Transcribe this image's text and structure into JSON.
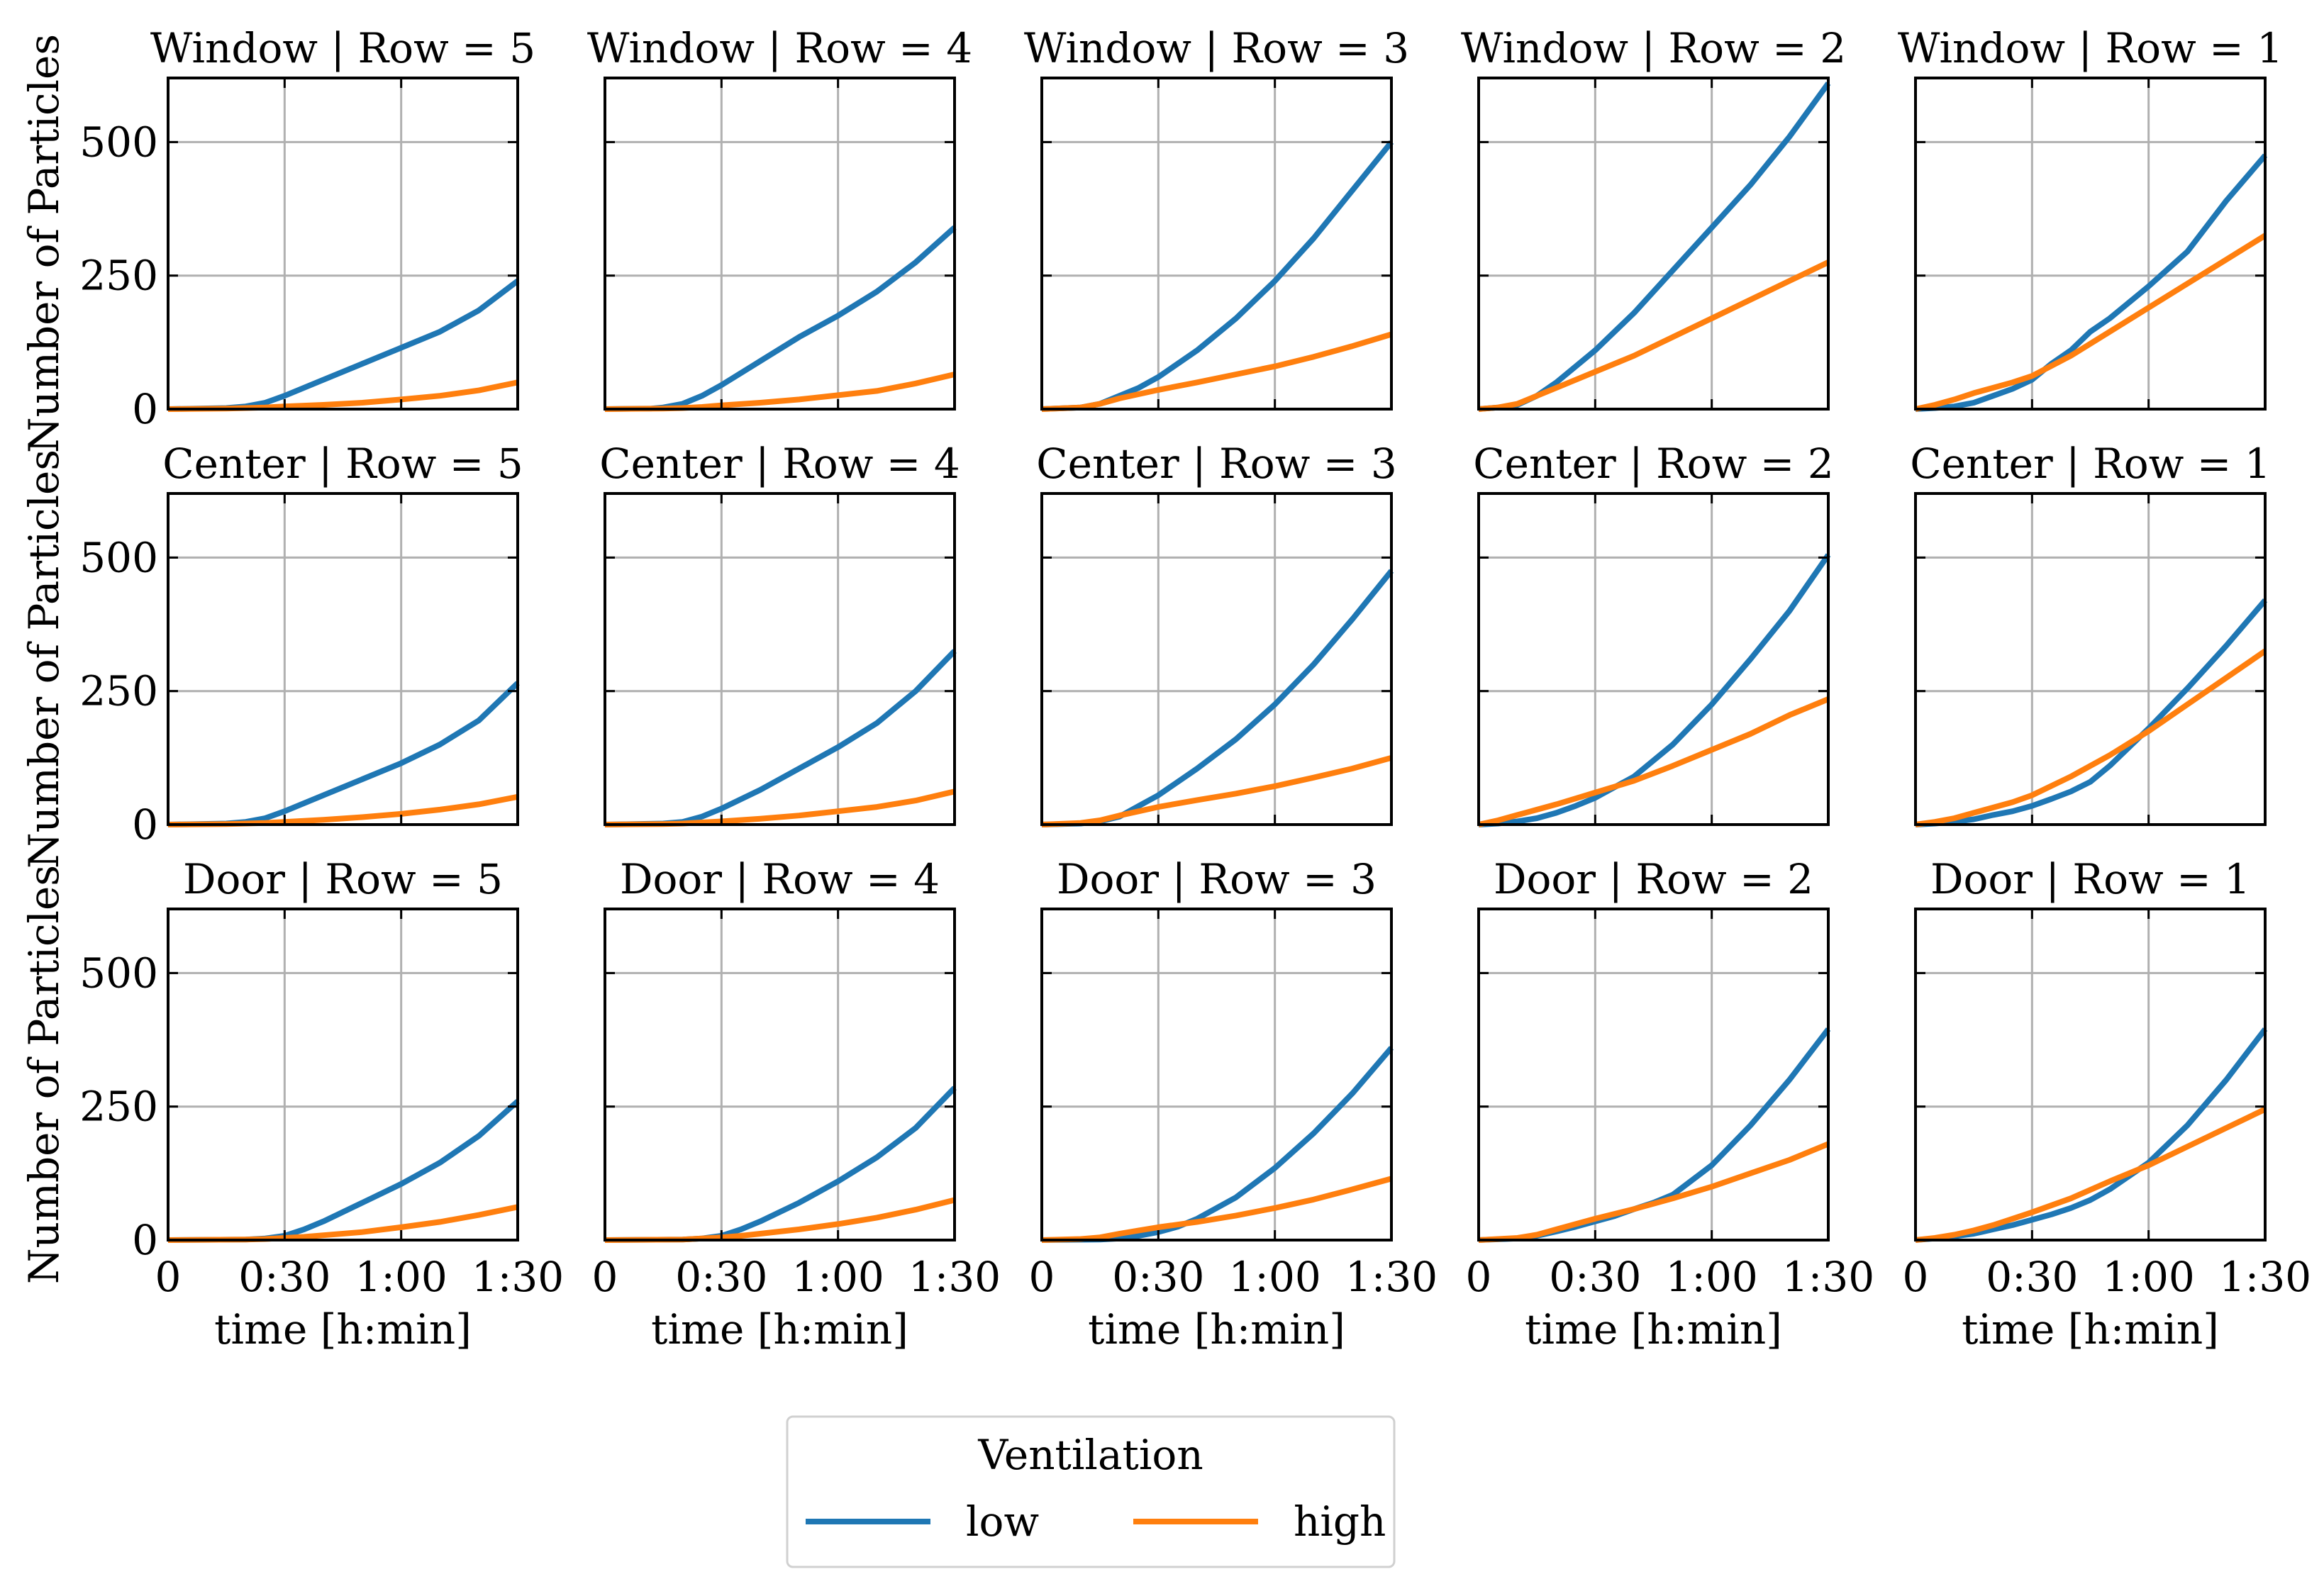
{
  "chart_data": {
    "type": "line",
    "legend": {
      "title": "Ventilation",
      "position": "bottom-center"
    },
    "series_styles": [
      {
        "name": "low",
        "color": "#1f77b4"
      },
      {
        "name": "high",
        "color": "#ff7f0e"
      }
    ],
    "x_axis": {
      "label": "time [h:min]",
      "range": [
        0,
        90
      ],
      "ticks": [
        0,
        30,
        60,
        90
      ],
      "tick_labels": [
        "0",
        "0:30",
        "1:00",
        "1:30"
      ],
      "unit": "minutes"
    },
    "y_axis": {
      "label": "Number of Particles",
      "range": [
        0,
        620
      ],
      "ticks": [
        0,
        250,
        500
      ],
      "tick_labels": [
        "0",
        "250",
        "500"
      ]
    },
    "grid": true,
    "panels": [
      {
        "title": "Window | Row = 5",
        "series": [
          {
            "name": "low",
            "x": [
              0,
              15,
              20,
              25,
              30,
              40,
              50,
              60,
              70,
              80,
              90
            ],
            "values": [
              0,
              2,
              5,
              12,
              25,
              55,
              85,
              115,
              145,
              185,
              240
            ]
          },
          {
            "name": "high",
            "x": [
              0,
              15,
              20,
              25,
              30,
              40,
              50,
              60,
              70,
              80,
              90
            ],
            "values": [
              0,
              1,
              2,
              3,
              5,
              8,
              12,
              18,
              25,
              35,
              50
            ]
          }
        ]
      },
      {
        "title": "Window | Row = 4",
        "series": [
          {
            "name": "low",
            "x": [
              0,
              12,
              15,
              20,
              25,
              30,
              40,
              50,
              55,
              60,
              70,
              80,
              90
            ],
            "values": [
              0,
              1,
              3,
              10,
              25,
              45,
              90,
              135,
              155,
              175,
              220,
              275,
              340
            ]
          },
          {
            "name": "high",
            "x": [
              0,
              15,
              20,
              25,
              30,
              40,
              50,
              60,
              70,
              80,
              90
            ],
            "values": [
              0,
              1,
              2,
              4,
              7,
              12,
              18,
              26,
              34,
              48,
              65
            ]
          }
        ]
      },
      {
        "title": "Window | Row = 3",
        "series": [
          {
            "name": "low",
            "x": [
              0,
              10,
              15,
              20,
              25,
              30,
              40,
              50,
              60,
              70,
              80,
              90
            ],
            "values": [
              0,
              3,
              10,
              25,
              40,
              60,
              110,
              170,
              240,
              320,
              410,
              500
            ]
          },
          {
            "name": "high",
            "x": [
              0,
              10,
              15,
              20,
              25,
              30,
              40,
              50,
              60,
              70,
              80,
              90
            ],
            "values": [
              0,
              3,
              10,
              20,
              28,
              36,
              50,
              65,
              80,
              98,
              118,
              140
            ]
          }
        ]
      },
      {
        "title": "Window | Row = 2",
        "series": [
          {
            "name": "low",
            "x": [
              0,
              5,
              10,
              15,
              20,
              30,
              40,
              50,
              60,
              70,
              80,
              90
            ],
            "values": [
              0,
              3,
              8,
              25,
              50,
              110,
              180,
              260,
              340,
              420,
              510,
              610
            ]
          },
          {
            "name": "high",
            "x": [
              0,
              5,
              10,
              15,
              20,
              30,
              40,
              50,
              60,
              70,
              80,
              90
            ],
            "values": [
              0,
              3,
              10,
              25,
              40,
              70,
              100,
              135,
              170,
              205,
              240,
              275
            ]
          }
        ]
      },
      {
        "title": "Window | Row = 1",
        "series": [
          {
            "name": "low",
            "x": [
              0,
              5,
              10,
              15,
              20,
              25,
              30,
              35,
              40,
              45,
              50,
              60,
              70,
              80,
              90
            ],
            "values": [
              0,
              2,
              5,
              12,
              25,
              38,
              55,
              85,
              110,
              145,
              170,
              230,
              295,
              390,
              475
            ]
          },
          {
            "name": "high",
            "x": [
              0,
              5,
              10,
              15,
              20,
              25,
              30,
              40,
              50,
              60,
              70,
              80,
              90
            ],
            "values": [
              0,
              8,
              18,
              30,
              40,
              50,
              62,
              100,
              145,
              190,
              235,
              280,
              325
            ]
          }
        ]
      },
      {
        "title": "Center | Row = 5",
        "series": [
          {
            "name": "low",
            "x": [
              0,
              15,
              20,
              25,
              30,
              40,
              50,
              60,
              70,
              80,
              90
            ],
            "values": [
              0,
              2,
              5,
              12,
              25,
              55,
              85,
              115,
              150,
              195,
              265
            ]
          },
          {
            "name": "high",
            "x": [
              0,
              15,
              20,
              25,
              30,
              40,
              50,
              60,
              70,
              80,
              90
            ],
            "values": [
              0,
              1,
              2,
              3,
              5,
              9,
              14,
              20,
              28,
              38,
              52
            ]
          }
        ]
      },
      {
        "title": "Center | Row = 4",
        "series": [
          {
            "name": "low",
            "x": [
              0,
              15,
              20,
              25,
              30,
              40,
              50,
              60,
              70,
              80,
              90
            ],
            "values": [
              0,
              2,
              5,
              15,
              30,
              65,
              105,
              145,
              190,
              250,
              325
            ]
          },
          {
            "name": "high",
            "x": [
              0,
              15,
              20,
              25,
              30,
              40,
              50,
              60,
              70,
              80,
              90
            ],
            "values": [
              0,
              1,
              2,
              4,
              6,
              11,
              17,
              25,
              33,
              45,
              62
            ]
          }
        ]
      },
      {
        "title": "Center | Row = 3",
        "series": [
          {
            "name": "low",
            "x": [
              0,
              10,
              15,
              20,
              25,
              30,
              40,
              50,
              60,
              70,
              80,
              90
            ],
            "values": [
              0,
              2,
              6,
              15,
              35,
              55,
              105,
              160,
              225,
              300,
              385,
              475
            ]
          },
          {
            "name": "high",
            "x": [
              0,
              10,
              15,
              20,
              25,
              30,
              40,
              50,
              60,
              70,
              80,
              90
            ],
            "values": [
              0,
              3,
              8,
              17,
              25,
              33,
              46,
              58,
              72,
              88,
              105,
              125
            ]
          }
        ]
      },
      {
        "title": "Center | Row = 2",
        "series": [
          {
            "name": "low",
            "x": [
              0,
              5,
              10,
              15,
              20,
              25,
              30,
              35,
              40,
              50,
              60,
              70,
              80,
              90
            ],
            "values": [
              0,
              2,
              6,
              12,
              22,
              35,
              50,
              70,
              90,
              150,
              225,
              310,
              400,
              505
            ]
          },
          {
            "name": "high",
            "x": [
              0,
              5,
              10,
              15,
              20,
              30,
              40,
              50,
              60,
              70,
              80,
              90
            ],
            "values": [
              0,
              8,
              18,
              28,
              38,
              60,
              82,
              110,
              140,
              170,
              205,
              235
            ]
          }
        ]
      },
      {
        "title": "Center | Row = 1",
        "series": [
          {
            "name": "low",
            "x": [
              0,
              5,
              10,
              15,
              20,
              25,
              30,
              35,
              40,
              45,
              50,
              60,
              70,
              80,
              90
            ],
            "values": [
              0,
              2,
              5,
              10,
              18,
              25,
              35,
              48,
              62,
              80,
              110,
              180,
              255,
              335,
              420
            ]
          },
          {
            "name": "high",
            "x": [
              0,
              5,
              10,
              15,
              20,
              25,
              30,
              40,
              50,
              60,
              70,
              80,
              90
            ],
            "values": [
              0,
              5,
              12,
              22,
              32,
              42,
              55,
              90,
              130,
              175,
              225,
              275,
              325
            ]
          }
        ]
      },
      {
        "title": "Door | Row = 5",
        "series": [
          {
            "name": "low",
            "x": [
              0,
              20,
              25,
              30,
              35,
              40,
              50,
              60,
              70,
              80,
              90
            ],
            "values": [
              0,
              1,
              3,
              8,
              20,
              35,
              70,
              105,
              145,
              195,
              260
            ]
          },
          {
            "name": "high",
            "x": [
              0,
              20,
              25,
              30,
              35,
              40,
              50,
              60,
              70,
              80,
              90
            ],
            "values": [
              0,
              1,
              2,
              4,
              6,
              9,
              15,
              24,
              34,
              47,
              62
            ]
          }
        ]
      },
      {
        "title": "Door | Row = 4",
        "series": [
          {
            "name": "low",
            "x": [
              0,
              20,
              25,
              30,
              35,
              40,
              50,
              60,
              70,
              80,
              90
            ],
            "values": [
              0,
              1,
              3,
              8,
              20,
              35,
              70,
              110,
              155,
              210,
              285
            ]
          },
          {
            "name": "high",
            "x": [
              0,
              20,
              25,
              30,
              35,
              40,
              50,
              60,
              70,
              80,
              90
            ],
            "values": [
              0,
              1,
              3,
              5,
              8,
              12,
              20,
              30,
              42,
              57,
              75
            ]
          }
        ]
      },
      {
        "title": "Door | Row = 3",
        "series": [
          {
            "name": "low",
            "x": [
              0,
              15,
              20,
              25,
              30,
              35,
              40,
              50,
              60,
              70,
              80,
              90
            ],
            "values": [
              0,
              1,
              3,
              8,
              15,
              25,
              40,
              80,
              135,
              200,
              275,
              360
            ]
          },
          {
            "name": "high",
            "x": [
              0,
              10,
              15,
              20,
              25,
              30,
              40,
              50,
              60,
              70,
              80,
              90
            ],
            "values": [
              0,
              2,
              5,
              12,
              18,
              24,
              34,
              46,
              60,
              76,
              95,
              115
            ]
          }
        ]
      },
      {
        "title": "Door | Row = 2",
        "series": [
          {
            "name": "low",
            "x": [
              0,
              10,
              15,
              20,
              25,
              30,
              35,
              40,
              45,
              50,
              60,
              70,
              80,
              90
            ],
            "values": [
              0,
              3,
              8,
              16,
              25,
              35,
              45,
              58,
              70,
              85,
              140,
              215,
              300,
              395
            ]
          },
          {
            "name": "high",
            "x": [
              0,
              10,
              15,
              20,
              25,
              30,
              40,
              50,
              60,
              70,
              80,
              90
            ],
            "values": [
              0,
              4,
              10,
              20,
              30,
              40,
              58,
              78,
              100,
              125,
              150,
              180
            ]
          }
        ]
      },
      {
        "title": "Door | Row = 1",
        "series": [
          {
            "name": "low",
            "x": [
              0,
              5,
              10,
              15,
              20,
              25,
              30,
              35,
              40,
              45,
              50,
              60,
              70,
              80,
              90
            ],
            "values": [
              0,
              3,
              7,
              12,
              20,
              28,
              38,
              48,
              60,
              75,
              95,
              145,
              215,
              300,
              395
            ]
          },
          {
            "name": "high",
            "x": [
              0,
              5,
              10,
              15,
              20,
              25,
              30,
              40,
              50,
              60,
              70,
              80,
              90
            ],
            "values": [
              0,
              4,
              10,
              18,
              28,
              40,
              52,
              78,
              110,
              140,
              175,
              210,
              245
            ]
          }
        ]
      }
    ]
  }
}
